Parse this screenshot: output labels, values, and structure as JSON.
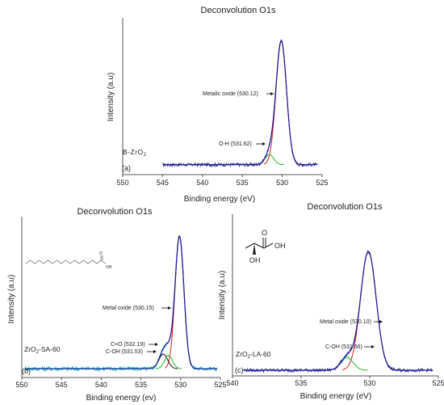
{
  "chart_data": [
    {
      "type": "line",
      "panel": "(a)",
      "title": "Deconvolution O1s",
      "xlabel": "Binding energy (eV)",
      "ylabel": "Intensity (a.u)",
      "sample_label": "B-ZrO2",
      "x_ticks": [
        550,
        545,
        540,
        535,
        530,
        525
      ],
      "xlim": [
        550,
        525
      ],
      "x_reversed": true,
      "grid": false,
      "legend": "none",
      "peaks": [
        {
          "label": "Metalic oxide (530.12)",
          "center": 530.12,
          "height": 0.87,
          "width": 0.66,
          "color": "#cc2222"
        },
        {
          "label": "O-H (531.62)",
          "center": 531.62,
          "height": 0.07,
          "width": 0.55,
          "color": "#22bb22"
        }
      ],
      "data_range": [
        545,
        525.6
      ],
      "baseline": 0.07,
      "envelope_color": "#1a1a9a",
      "noise_color": "#2a2a8a"
    },
    {
      "type": "line",
      "panel": "(b)",
      "title": "Deconvolution O1s",
      "xlabel": "Binding energy (ev)",
      "ylabel": "Intensity (a.u)",
      "sample_label": "ZrO2-SA-60",
      "x_ticks": [
        550,
        545,
        540,
        535,
        530,
        525
      ],
      "xlim": [
        550,
        525
      ],
      "x_reversed": true,
      "grid": false,
      "legend": "none",
      "peaks": [
        {
          "label": "Metal oxide (530.15)",
          "center": 530.15,
          "height": 0.9,
          "width": 0.56,
          "color": "#cc2222"
        },
        {
          "label": "C=O (532.19)",
          "center": 532.19,
          "height": 0.1,
          "width": 0.55,
          "color": "#111111"
        },
        {
          "label": "C-OH (531.53)",
          "center": 531.53,
          "height": 0.09,
          "width": 0.5,
          "color": "#22bb22"
        }
      ],
      "data_range": [
        549.6,
        525.4
      ],
      "baseline": 0.06,
      "envelope_color": "#1a1a9a",
      "noise_color": "#1fb8b8"
    },
    {
      "type": "line",
      "panel": "(c)",
      "title": "Deconvolution O1s",
      "xlabel": "Binding energy (eV)",
      "ylabel": "Intensity (a.u)",
      "sample_label": "ZrO2-LA-60",
      "x_ticks": [
        540,
        535,
        530,
        525
      ],
      "xlim": [
        540,
        525
      ],
      "x_reversed": true,
      "grid": false,
      "legend": "none",
      "peaks": [
        {
          "label": "Metal oxide (530.10)",
          "center": 530.1,
          "height": 0.84,
          "width": 0.57,
          "color": "#cc2222"
        },
        {
          "label": "C-OH (531.66)",
          "center": 531.66,
          "height": 0.09,
          "width": 0.45,
          "color": "#22bb22"
        }
      ],
      "data_range": [
        539.2,
        525.4
      ],
      "baseline": 0.04,
      "envelope_color": "#1a1a9a",
      "noise_color": "#2a2a8a"
    }
  ],
  "structures": {
    "lactic_acid_labels": {
      "oh_top": "OH",
      "oh_bottom": "OH",
      "o": "O"
    },
    "stearic_acid_labels": {
      "oh": "OH",
      "o": "O"
    }
  }
}
